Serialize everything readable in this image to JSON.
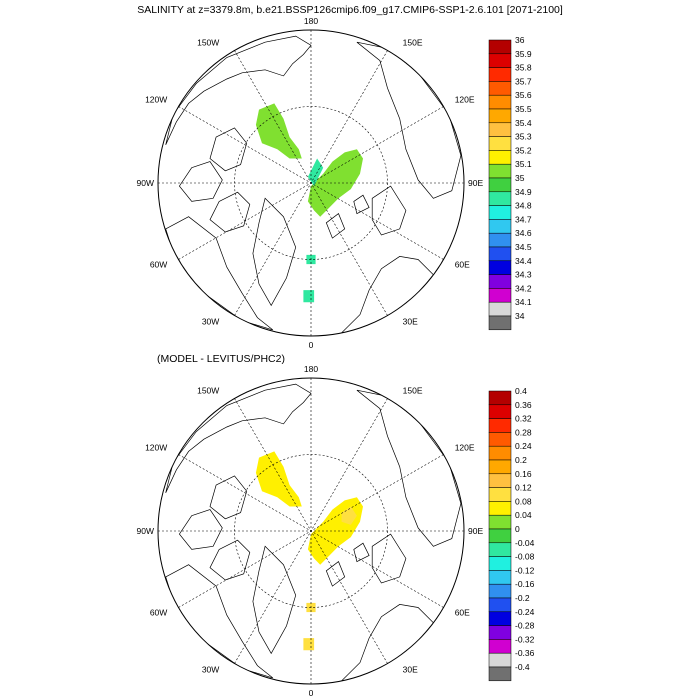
{
  "title": "SALINITY at z=3379.8m, b.e21.BSSP126cmip6.f09_g17.CMIP6-SSP1-2.6.101 [2071-2100]",
  "panels": [
    {
      "id": "top",
      "subtitle": "",
      "projection": "polar-stereographic (north pole)",
      "lon_labels": {
        "top": "180",
        "bottom": "0",
        "left": "90W",
        "right": "90E",
        "upper_left": "150W",
        "upper_right": "150E",
        "mid_left_upper": "120W",
        "mid_right_upper": "120E",
        "mid_left_lower": "60W",
        "mid_right_lower": "60E",
        "lower_left": "30W",
        "lower_right": "30E"
      },
      "colorbar": {
        "labels": [
          "36",
          "35.9",
          "35.8",
          "35.7",
          "35.6",
          "35.5",
          "35.4",
          "35.3",
          "35.2",
          "35.1",
          "35",
          "34.9",
          "34.8",
          "34.7",
          "34.6",
          "34.5",
          "34.4",
          "34.3",
          "34.2",
          "34.1",
          "34"
        ],
        "colors": [
          "#b40000",
          "#dc0000",
          "#ff2a00",
          "#ff5a00",
          "#ff8c00",
          "#ffa800",
          "#ffc040",
          "#ffe040",
          "#fff000",
          "#80e030",
          "#40d040",
          "#30e8a0",
          "#20f0e0",
          "#30c8f0",
          "#3090f0",
          "#2050f0",
          "#0000e0",
          "#8000e0",
          "#d000d0",
          "#d8d8d8",
          "#707070"
        ]
      },
      "field_regions": [
        {
          "name": "east-siberian-shelf",
          "value": 35.1
        },
        {
          "name": "central-arctic-basin",
          "value": 35.1
        },
        {
          "name": "central-arctic-fringe",
          "value": 34.9
        },
        {
          "name": "fram-strait",
          "value": 34.9
        },
        {
          "name": "greenland-sea",
          "value": 34.9
        }
      ]
    },
    {
      "id": "bottom",
      "subtitle": "(MODEL - LEVITUS/PHC2)",
      "projection": "polar-stereographic (north pole)",
      "lon_labels": {
        "top": "180",
        "bottom": "0",
        "left": "90W",
        "right": "90E",
        "upper_left": "150W",
        "upper_right": "150E",
        "mid_left_upper": "120W",
        "mid_right_upper": "120E",
        "mid_left_lower": "60W",
        "mid_right_lower": "60E",
        "lower_left": "30W",
        "lower_right": "30E"
      },
      "colorbar": {
        "labels": [
          "0.4",
          "0.36",
          "0.32",
          "0.28",
          "0.24",
          "0.2",
          "0.16",
          "0.12",
          "0.08",
          "0.04",
          "0",
          "-0.04",
          "-0.08",
          "-0.12",
          "-0.16",
          "-0.2",
          "-0.24",
          "-0.28",
          "-0.32",
          "-0.36",
          "-0.4"
        ],
        "colors": [
          "#b40000",
          "#dc0000",
          "#ff2a00",
          "#ff5a00",
          "#ff8c00",
          "#ffa800",
          "#ffc040",
          "#ffe040",
          "#fff000",
          "#80e030",
          "#40d040",
          "#30e8a0",
          "#20f0e0",
          "#30c8f0",
          "#3090f0",
          "#2050f0",
          "#0000e0",
          "#8000e0",
          "#d000d0",
          "#d8d8d8",
          "#707070"
        ]
      },
      "field_regions": [
        {
          "name": "east-siberian-shelf",
          "value": 0.06
        },
        {
          "name": "central-arctic-basin",
          "value": 0.06
        },
        {
          "name": "central-arctic-yellow-patch",
          "value": 0.12
        },
        {
          "name": "fram-strait",
          "value": 0.12
        },
        {
          "name": "greenland-sea",
          "value": 0.12
        }
      ]
    }
  ]
}
